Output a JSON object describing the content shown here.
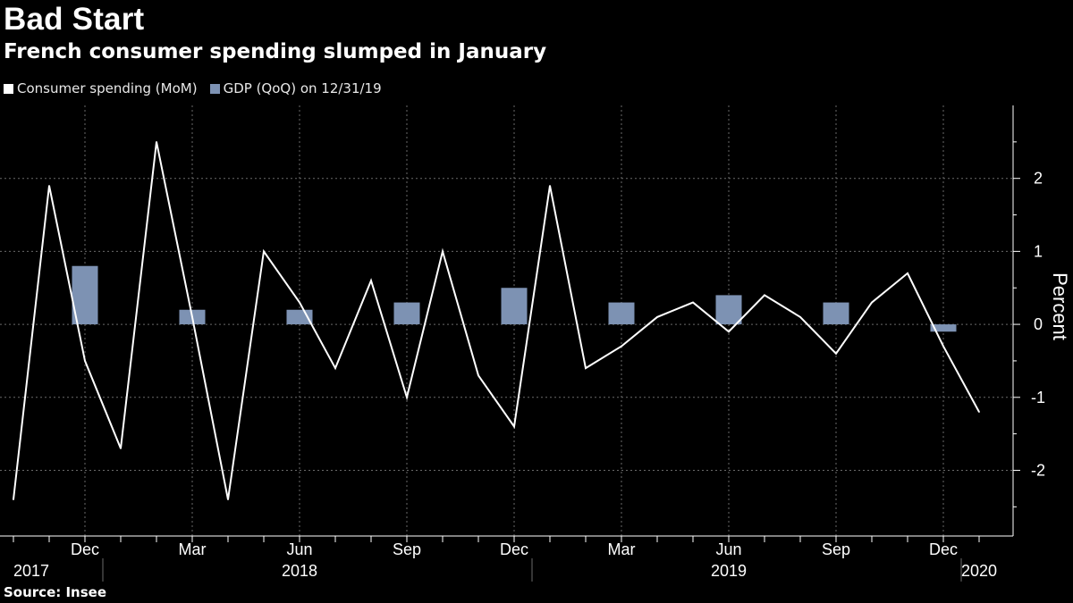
{
  "title": "Bad Start",
  "subtitle": "French consumer spending slumped in January",
  "source": "Source: Insee",
  "colors": {
    "line": "#ffffff",
    "bar": "#7d92b3",
    "grid": "#6a6a6a",
    "axis": "#ffffff"
  },
  "legend": [
    {
      "label": "Consumer spending (MoM)",
      "color": "#ffffff"
    },
    {
      "label": "GDP (QoQ) on 12/31/19",
      "color": "#7d92b3"
    }
  ],
  "chart_data": {
    "type": "line",
    "title": "Bad Start",
    "subtitle": "French consumer spending slumped in January",
    "ylabel": "Percent",
    "ylim": [
      -2.9,
      3.0
    ],
    "yticks": [
      -2,
      -1,
      0,
      1,
      2
    ],
    "x": [
      "2017-10",
      "2017-11",
      "2017-12",
      "2018-01",
      "2018-02",
      "2018-03",
      "2018-04",
      "2018-05",
      "2018-06",
      "2018-07",
      "2018-08",
      "2018-09",
      "2018-10",
      "2018-11",
      "2018-12",
      "2019-01",
      "2019-02",
      "2019-03",
      "2019-04",
      "2019-05",
      "2019-06",
      "2019-07",
      "2019-08",
      "2019-09",
      "2019-10",
      "2019-11",
      "2019-12",
      "2020-01"
    ],
    "month_ticks": [
      {
        "label": "Dec",
        "index": 2
      },
      {
        "label": "Mar",
        "index": 5
      },
      {
        "label": "Jun",
        "index": 8
      },
      {
        "label": "Sep",
        "index": 11
      },
      {
        "label": "Dec",
        "index": 14
      },
      {
        "label": "Mar",
        "index": 17
      },
      {
        "label": "Jun",
        "index": 20
      },
      {
        "label": "Sep",
        "index": 23
      },
      {
        "label": "Dec",
        "index": 26
      }
    ],
    "year_labels": [
      {
        "label": "2017",
        "index": 0.5
      },
      {
        "label": "2018",
        "index": 8
      },
      {
        "label": "2019",
        "index": 20
      },
      {
        "label": "2020",
        "index": 27
      }
    ],
    "year_separators": [
      2.5,
      14.5,
      26.5
    ],
    "series": [
      {
        "name": "Consumer spending (MoM)",
        "type": "line",
        "values": [
          -2.4,
          1.9,
          -0.5,
          -1.7,
          2.5,
          0.1,
          -2.4,
          1.0,
          0.3,
          -0.6,
          0.6,
          -1.0,
          1.0,
          -0.7,
          -1.4,
          1.9,
          -0.6,
          -0.3,
          0.1,
          0.3,
          -0.1,
          0.4,
          0.1,
          -0.4,
          0.3,
          0.7,
          -0.3,
          -1.2
        ]
      },
      {
        "name": "GDP (QoQ) on 12/31/19",
        "type": "bar",
        "points": [
          {
            "index": 2,
            "value": 0.8
          },
          {
            "index": 5,
            "value": 0.2
          },
          {
            "index": 8,
            "value": 0.2
          },
          {
            "index": 11,
            "value": 0.3
          },
          {
            "index": 14,
            "value": 0.5
          },
          {
            "index": 17,
            "value": 0.3
          },
          {
            "index": 20,
            "value": 0.4
          },
          {
            "index": 23,
            "value": 0.3
          },
          {
            "index": 26,
            "value": -0.1
          }
        ]
      }
    ]
  }
}
